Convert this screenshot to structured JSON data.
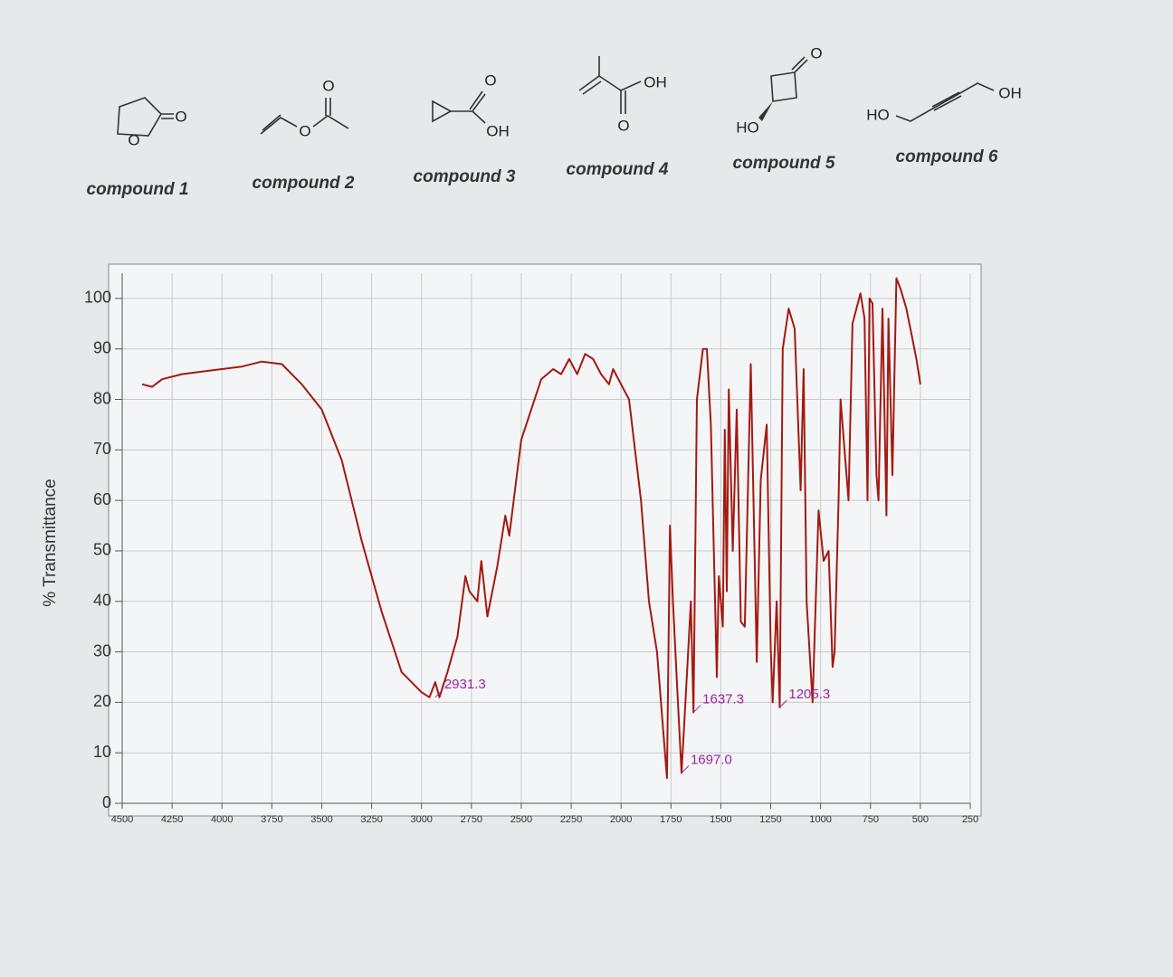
{
  "compounds": [
    {
      "label": "compound 1",
      "atoms": [
        "O",
        "O"
      ]
    },
    {
      "label": "compound 2",
      "atoms": [
        "O",
        "O"
      ]
    },
    {
      "label": "compound 3",
      "atoms": [
        "O",
        "OH"
      ]
    },
    {
      "label": "compound 4",
      "atoms": [
        "OH",
        "O"
      ]
    },
    {
      "label": "compound 5",
      "atoms": [
        "O",
        "HO"
      ]
    },
    {
      "label": "compound 6",
      "atoms": [
        "HO",
        "OH"
      ]
    }
  ],
  "chart_data": {
    "type": "line",
    "ylabel": "% Transmittance",
    "xlim": [
      4500,
      250
    ],
    "ylim": [
      0,
      105
    ],
    "xticks": [
      4500,
      4250,
      4000,
      3750,
      3500,
      3250,
      3000,
      2750,
      2500,
      2250,
      2000,
      1750,
      1500,
      1250,
      1000,
      750,
      500,
      250
    ],
    "yticks": [
      0,
      10,
      20,
      30,
      40,
      50,
      60,
      70,
      80,
      90,
      100
    ],
    "grid": true,
    "series": [
      {
        "name": "spectrum",
        "color": "#a31a12",
        "x": [
          4400,
          4350,
          4300,
          4200,
          4100,
          4000,
          3900,
          3800,
          3700,
          3600,
          3500,
          3400,
          3300,
          3200,
          3100,
          3050,
          3000,
          2960,
          2931,
          2910,
          2870,
          2820,
          2780,
          2760,
          2720,
          2700,
          2670,
          2620,
          2580,
          2560,
          2500,
          2400,
          2340,
          2300,
          2260,
          2220,
          2180,
          2140,
          2100,
          2060,
          2040,
          2000,
          1960,
          1900,
          1860,
          1820,
          1790,
          1770,
          1755,
          1740,
          1720,
          1697,
          1680,
          1650,
          1637,
          1620,
          1590,
          1570,
          1550,
          1520,
          1510,
          1490,
          1480,
          1470,
          1460,
          1440,
          1420,
          1400,
          1380,
          1350,
          1320,
          1300,
          1270,
          1250,
          1240,
          1220,
          1205,
          1190,
          1160,
          1130,
          1100,
          1085,
          1070,
          1040,
          1010,
          985,
          960,
          940,
          930,
          910,
          900,
          880,
          860,
          840,
          800,
          780,
          765,
          755,
          740,
          720,
          710,
          690,
          670,
          660,
          640,
          620,
          600,
          570,
          540,
          520,
          500
        ],
        "values": [
          83,
          82.5,
          84,
          85,
          85.5,
          86,
          86.5,
          87.5,
          87,
          83,
          78,
          68,
          52,
          38,
          26,
          24,
          22,
          21,
          24,
          21,
          26,
          33,
          45,
          42,
          40,
          48,
          37,
          47,
          57,
          53,
          72,
          84,
          86,
          85,
          88,
          85,
          89,
          88,
          85,
          83,
          86,
          83,
          80,
          60,
          40,
          30,
          15,
          5,
          55,
          40,
          24,
          6,
          18,
          40,
          18,
          80,
          90,
          90,
          75,
          25,
          45,
          35,
          74,
          42,
          82,
          50,
          78,
          36,
          35,
          87,
          28,
          64,
          75,
          31,
          20,
          40,
          19,
          90,
          98,
          94,
          62,
          86,
          40,
          20,
          58,
          48,
          50,
          27,
          30,
          60,
          80,
          70,
          60,
          95,
          101,
          96,
          60,
          100,
          99,
          65,
          60,
          98,
          57,
          96,
          65,
          104,
          102,
          98,
          92,
          88,
          83
        ]
      }
    ],
    "annotations": [
      {
        "x": 2931.3,
        "y": 21,
        "text": "2931.3"
      },
      {
        "x": 1697.0,
        "y": 6,
        "text": "1697.0"
      },
      {
        "x": 1637.3,
        "y": 18,
        "text": "1637.3"
      },
      {
        "x": 1205.3,
        "y": 19,
        "text": "1205.3"
      }
    ]
  }
}
